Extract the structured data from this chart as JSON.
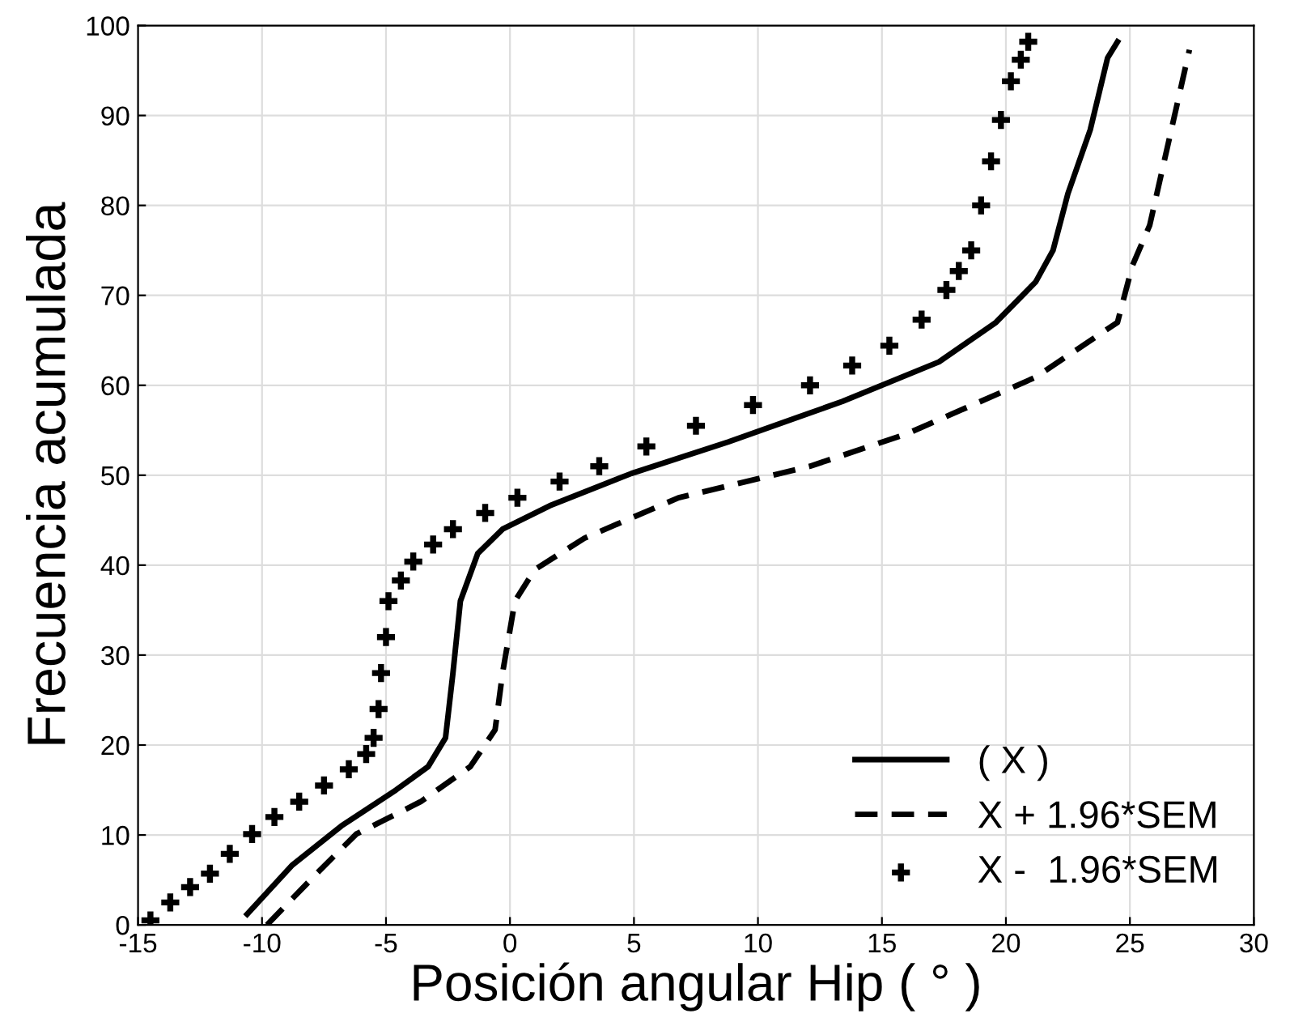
{
  "chart_data": {
    "type": "line",
    "xlabel": "Posición angular Hip ( ° )",
    "ylabel": "Frecuencia acumulada",
    "xlim": [
      -15,
      30
    ],
    "xticks": [
      -15,
      -10,
      -5,
      0,
      5,
      10,
      15,
      20,
      25,
      30
    ],
    "ylim": [
      0,
      100
    ],
    "yticks": [
      0,
      10,
      20,
      30,
      40,
      50,
      60,
      70,
      80,
      90,
      100
    ],
    "grid": true,
    "legend": "bottom right",
    "series": [
      {
        "name": "( X )",
        "color": "#000000",
        "line_style": "solid",
        "marker": "none",
        "x": [
          -10.6,
          -8.8,
          -6.8,
          -4.6,
          -3.3,
          -2.6,
          -2.3,
          -2.0,
          -1.3,
          -0.3,
          1.6,
          4.9,
          8.8,
          13.4,
          17.3,
          19.6,
          21.2,
          21.9,
          22.5,
          23.4,
          24.1,
          24.5
        ],
        "values": [
          1.2,
          6.6,
          11,
          15,
          17.6,
          20.8,
          28,
          36,
          41.3,
          44,
          46.6,
          50.2,
          53.7,
          58.2,
          62.6,
          67,
          71.5,
          75,
          81.3,
          88.4,
          96.4,
          98.2
        ]
      },
      {
        "name": "X + 1.96*SEM",
        "color": "#000000",
        "line_style": "dashed",
        "marker": "none",
        "x": [
          -9.8,
          -7.8,
          -6.2,
          -3.6,
          -1.6,
          -0.6,
          -0.3,
          0.2,
          1.0,
          3.0,
          6.8,
          12.1,
          16.0,
          21.2,
          24.5,
          25.1,
          25.8,
          27.4
        ],
        "values": [
          0,
          5.7,
          10.1,
          13.7,
          17.6,
          21.7,
          28,
          36,
          39.5,
          43,
          47.5,
          51,
          54.6,
          60.9,
          67,
          73.3,
          77.8,
          97.3
        ]
      },
      {
        "name": "X -  1.96*SEM",
        "type": "scatter",
        "color": "#000000",
        "marker": "cross",
        "x": [
          -14.5,
          -13.7,
          -12.9,
          -12.1,
          -11.3,
          -10.4,
          -9.5,
          -8.5,
          -7.5,
          -6.5,
          -5.8,
          -5.5,
          -5.3,
          -5.2,
          -5.0,
          -4.9,
          -4.4,
          -3.9,
          -3.1,
          -2.3,
          -1.0,
          0.3,
          2.0,
          3.6,
          5.5,
          7.5,
          9.8,
          12.1,
          13.8,
          15.3,
          16.6,
          17.6,
          18.1,
          18.6,
          19.0,
          19.4,
          19.8,
          20.2,
          20.6,
          20.9
        ],
        "values": [
          0.5,
          2.5,
          4.2,
          5.7,
          7.9,
          10.1,
          12.0,
          13.7,
          15.5,
          17.3,
          19.0,
          20.8,
          24.0,
          28,
          32,
          36,
          38.3,
          40.4,
          42.3,
          44,
          45.8,
          47.5,
          49.3,
          51,
          53.2,
          55.5,
          57.8,
          60,
          62.2,
          64.4,
          67.3,
          70.6,
          72.7,
          75,
          80,
          84.9,
          89.5,
          93.8,
          96.2,
          98.2
        ]
      }
    ]
  }
}
